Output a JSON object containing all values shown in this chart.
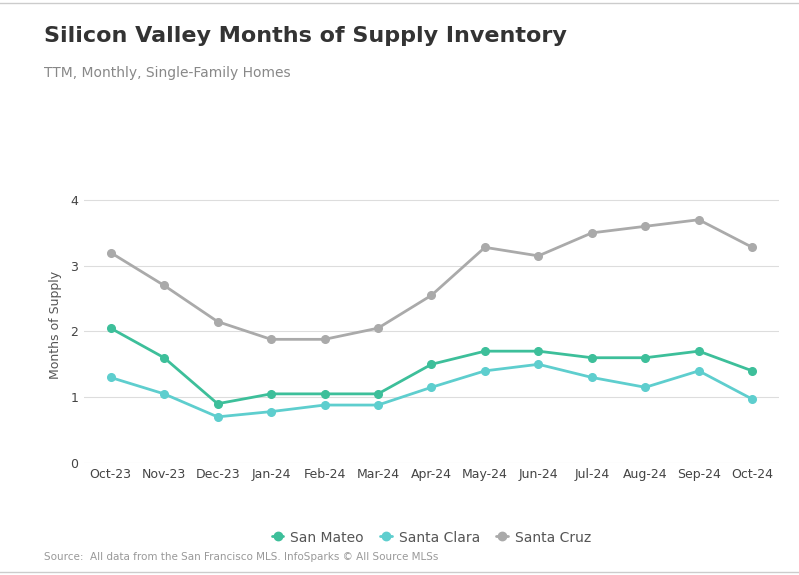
{
  "title": "Silicon Valley Months of Supply Inventory",
  "subtitle": "TTM, Monthly, Single-Family Homes",
  "ylabel": "Months of Supply",
  "source": "Source:  All data from the San Francisco MLS. InfoSparks © All Source MLSs",
  "x_labels": [
    "Oct-23",
    "Nov-23",
    "Dec-23",
    "Jan-24",
    "Feb-24",
    "Mar-24",
    "Apr-24",
    "May-24",
    "Jun-24",
    "Jul-24",
    "Aug-24",
    "Sep-24",
    "Oct-24"
  ],
  "san_mateo": [
    2.05,
    1.6,
    0.9,
    1.05,
    1.05,
    1.05,
    1.5,
    1.7,
    1.7,
    1.6,
    1.6,
    1.7,
    1.4
  ],
  "santa_clara": [
    1.3,
    1.05,
    0.7,
    0.78,
    0.88,
    0.88,
    1.15,
    1.4,
    1.5,
    1.3,
    1.15,
    1.4,
    0.97
  ],
  "santa_cruz": [
    3.2,
    2.7,
    2.15,
    1.88,
    1.88,
    2.05,
    2.55,
    3.28,
    3.15,
    3.5,
    3.6,
    3.7,
    3.28
  ],
  "san_mateo_color": "#3dbf9a",
  "santa_clara_color": "#5ecece",
  "santa_cruz_color": "#aaaaaa",
  "ylim": [
    0,
    4.2
  ],
  "yticks": [
    0,
    1,
    2,
    3,
    4
  ],
  "bg_color": "#ffffff",
  "grid_color": "#dddddd",
  "title_fontsize": 16,
  "subtitle_fontsize": 10,
  "axis_fontsize": 9,
  "legend_fontsize": 10,
  "source_fontsize": 7.5
}
